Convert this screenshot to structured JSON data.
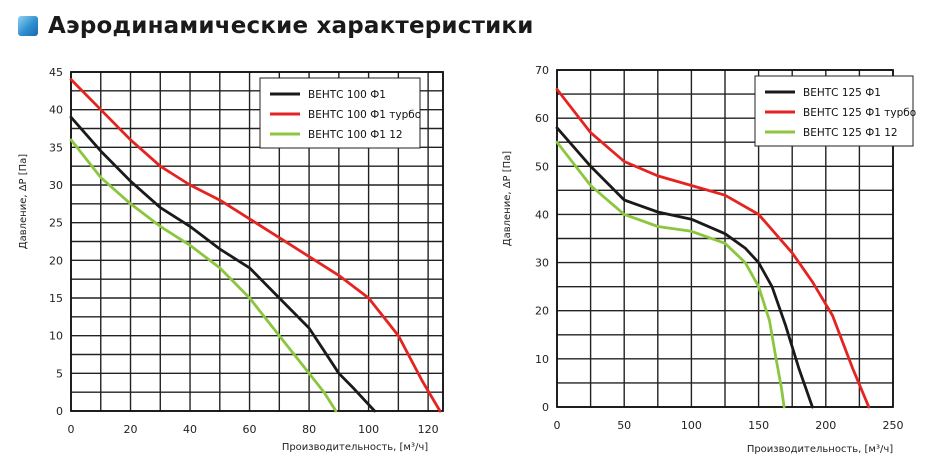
{
  "header": {
    "title": "Аэродинамические характеристики"
  },
  "chart_data": [
    {
      "type": "line",
      "xlabel": "Производительность, [м³/ч]",
      "ylabel": "Давление, ΔP [Па]",
      "xlim": [
        0,
        125
      ],
      "ylim": [
        0,
        45
      ],
      "xticks": [
        0,
        20,
        40,
        60,
        80,
        100,
        120
      ],
      "yticks": [
        0,
        5,
        10,
        15,
        20,
        25,
        30,
        35,
        40,
        45
      ],
      "xgrid": [
        0,
        10,
        20,
        30,
        40,
        50,
        60,
        70,
        80,
        90,
        100,
        110,
        120,
        125
      ],
      "ygrid": [
        0,
        2.5,
        5,
        7.5,
        10,
        12.5,
        15,
        17.5,
        20,
        22.5,
        25,
        27.5,
        30,
        32.5,
        35,
        37.5,
        40,
        42.5,
        45
      ],
      "grid": true,
      "legend": "top-right",
      "series": [
        {
          "name": "ВЕНТС 100 Ф1",
          "color": "#1a1a1a",
          "points": [
            [
              0,
              39
            ],
            [
              10,
              34.5
            ],
            [
              20,
              30.5
            ],
            [
              30,
              27
            ],
            [
              40,
              24.5
            ],
            [
              50,
              21.5
            ],
            [
              60,
              19
            ],
            [
              70,
              15
            ],
            [
              80,
              11
            ],
            [
              85,
              8
            ],
            [
              90,
              5
            ],
            [
              95,
              3
            ],
            [
              102,
              0
            ]
          ]
        },
        {
          "name": "ВЕНТС 100 Ф1 турбо",
          "color": "#e52421",
          "points": [
            [
              0,
              44
            ],
            [
              10,
              40
            ],
            [
              20,
              36
            ],
            [
              30,
              32.5
            ],
            [
              40,
              30
            ],
            [
              50,
              28
            ],
            [
              60,
              25.5
            ],
            [
              70,
              23
            ],
            [
              80,
              20.5
            ],
            [
              90,
              18
            ],
            [
              100,
              15
            ],
            [
              110,
              10
            ],
            [
              118,
              4
            ],
            [
              124,
              0
            ]
          ]
        },
        {
          "name": "ВЕНТС 100 Ф1 12",
          "color": "#8cc63f",
          "points": [
            [
              0,
              36
            ],
            [
              10,
              31
            ],
            [
              20,
              27.5
            ],
            [
              30,
              24.5
            ],
            [
              40,
              22
            ],
            [
              50,
              19
            ],
            [
              60,
              15
            ],
            [
              70,
              10
            ],
            [
              78,
              6
            ],
            [
              85,
              2.5
            ],
            [
              89,
              0
            ]
          ]
        }
      ]
    },
    {
      "type": "line",
      "xlabel": "Производительность, [м³/ч]",
      "ylabel": "Давление, ΔP [Па]",
      "xlim": [
        0,
        250
      ],
      "ylim": [
        0,
        70
      ],
      "xticks": [
        0,
        50,
        100,
        150,
        200,
        250
      ],
      "yticks": [
        0,
        10,
        20,
        30,
        40,
        50,
        60,
        70
      ],
      "xgrid": [
        0,
        25,
        50,
        75,
        100,
        125,
        150,
        175,
        200,
        225,
        250
      ],
      "ygrid": [
        0,
        5,
        10,
        15,
        20,
        25,
        30,
        35,
        40,
        45,
        50,
        55,
        60,
        65,
        70
      ],
      "grid": true,
      "legend": "top-right",
      "series": [
        {
          "name": "ВЕНТС 125 Ф1",
          "color": "#1a1a1a",
          "points": [
            [
              0,
              58
            ],
            [
              25,
              50
            ],
            [
              50,
              43
            ],
            [
              75,
              40.5
            ],
            [
              100,
              39
            ],
            [
              125,
              36
            ],
            [
              140,
              33
            ],
            [
              150,
              30
            ],
            [
              160,
              25
            ],
            [
              170,
              17
            ],
            [
              180,
              8
            ],
            [
              190,
              0
            ]
          ]
        },
        {
          "name": "ВЕНТС 125 Ф1 турбо",
          "color": "#e52421",
          "points": [
            [
              0,
              66
            ],
            [
              25,
              57
            ],
            [
              50,
              51
            ],
            [
              75,
              48
            ],
            [
              100,
              46
            ],
            [
              125,
              44
            ],
            [
              150,
              40
            ],
            [
              175,
              32
            ],
            [
              190,
              26
            ],
            [
              205,
              19
            ],
            [
              220,
              8
            ],
            [
              232,
              0
            ]
          ]
        },
        {
          "name": "ВЕНТС 125 Ф1 12",
          "color": "#8cc63f",
          "points": [
            [
              0,
              55
            ],
            [
              25,
              46
            ],
            [
              50,
              40
            ],
            [
              75,
              37.5
            ],
            [
              100,
              36.5
            ],
            [
              125,
              34
            ],
            [
              140,
              30
            ],
            [
              150,
              25
            ],
            [
              158,
              18
            ],
            [
              163,
              10
            ],
            [
              167,
              4
            ],
            [
              169,
              0
            ]
          ]
        }
      ]
    }
  ]
}
